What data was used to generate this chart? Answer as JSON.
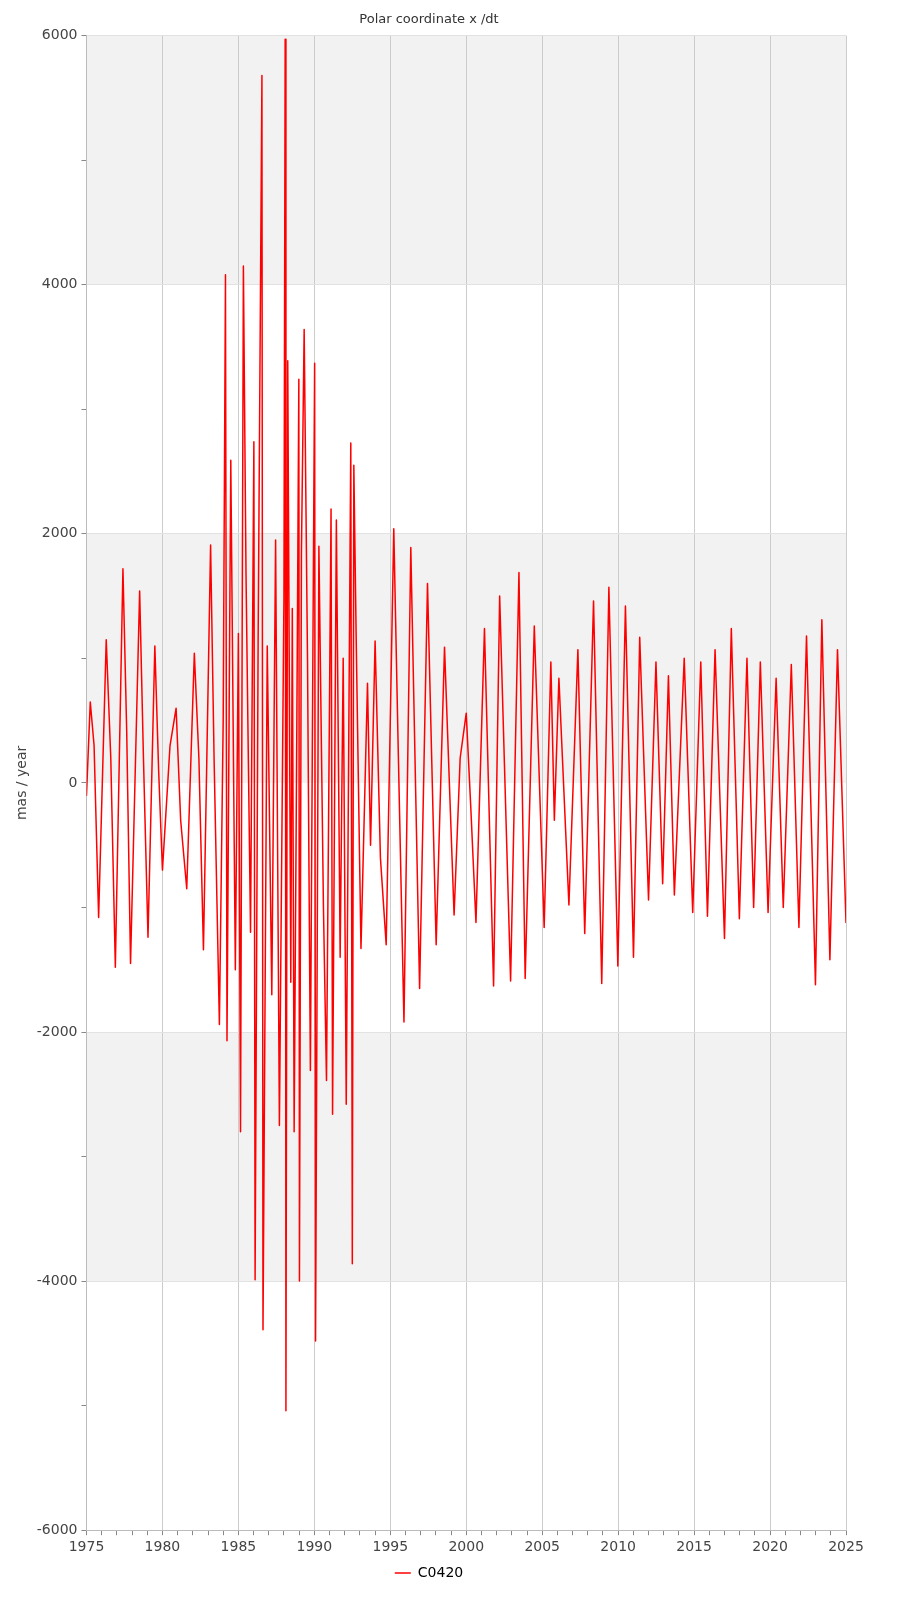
{
  "chart_data": {
    "type": "line",
    "title": "Polar coordinate x /dt",
    "ylabel": "mas / year",
    "xlim": [
      1975,
      2025
    ],
    "xticks": [
      1975,
      {
        "value": 1976,
        "label": null
      },
      {
        "value": 1977,
        "label": null
      },
      {
        "value": 1978,
        "label": null
      },
      {
        "value": 1979,
        "label": null
      },
      1980,
      {
        "value": 1981,
        "label": null
      },
      {
        "value": 1982,
        "label": null
      },
      {
        "value": 1983,
        "label": null
      },
      {
        "value": 1984,
        "label": null
      },
      1985,
      {
        "value": 1986,
        "label": null
      },
      {
        "value": 1987,
        "label": null
      },
      {
        "value": 1988,
        "label": null
      },
      {
        "value": 1989,
        "label": null
      },
      1990,
      {
        "value": 1991,
        "label": null
      },
      {
        "value": 1992,
        "label": null
      },
      {
        "value": 1993,
        "label": null
      },
      {
        "value": 1994,
        "label": null
      },
      1995,
      {
        "value": 1996,
        "label": null
      },
      {
        "value": 1997,
        "label": null
      },
      {
        "value": 1998,
        "label": null
      },
      {
        "value": 1999,
        "label": null
      },
      2000,
      {
        "value": 2001,
        "label": null
      },
      {
        "value": 2002,
        "label": null
      },
      {
        "value": 2003,
        "label": null
      },
      {
        "value": 2004,
        "label": null
      },
      2005,
      {
        "value": 2006,
        "label": null
      },
      {
        "value": 2007,
        "label": null
      },
      {
        "value": 2008,
        "label": null
      },
      {
        "value": 2009,
        "label": null
      },
      2010,
      {
        "value": 2011,
        "label": null
      },
      {
        "value": 2012,
        "label": null
      },
      {
        "value": 2013,
        "label": null
      },
      {
        "value": 2014,
        "label": null
      },
      2015,
      {
        "value": 2016,
        "label": null
      },
      {
        "value": 2017,
        "label": null
      },
      {
        "value": 2018,
        "label": null
      },
      {
        "value": 2019,
        "label": null
      },
      2020,
      {
        "value": 2021,
        "label": null
      },
      {
        "value": 2022,
        "label": null
      },
      {
        "value": 2023,
        "label": null
      },
      {
        "value": 2024,
        "label": null
      },
      2025
    ],
    "ylim": [
      -6000,
      6000
    ],
    "yticks": [
      -6000,
      {
        "value": -5000,
        "label": null
      },
      -4000,
      {
        "value": -3000,
        "label": null
      },
      -2000,
      {
        "value": -1000,
        "label": null
      },
      0,
      {
        "value": 1000,
        "label": null
      },
      2000,
      {
        "value": 3000,
        "label": null
      },
      4000,
      {
        "value": 5000,
        "label": null
      },
      6000
    ],
    "grid": true,
    "legend": "bottom",
    "marker": "none",
    "line_style": "solid",
    "bands": [
      {
        "axis": "y",
        "from": 4000,
        "to": 6000,
        "color": "#f2f2f2"
      },
      {
        "axis": "y",
        "from": 0,
        "to": 2000,
        "color": "#f2f2f2"
      },
      {
        "axis": "y",
        "from": -4000,
        "to": -2000,
        "color": "#f2f2f2"
      }
    ],
    "series": [
      {
        "name": "C0420",
        "color": "#ff0000",
        "x": [
          1975.0,
          1975.25,
          1975.5,
          1975.8,
          1976.3,
          1976.6,
          1976.9,
          1977.4,
          1977.65,
          1977.9,
          1978.5,
          1978.75,
          1979.05,
          1979.5,
          1979.75,
          1980.0,
          1980.5,
          1980.9,
          1981.2,
          1981.6,
          1982.1,
          1982.4,
          1982.7,
          1983.17,
          1983.4,
          1983.75,
          1984.0,
          1984.15,
          1984.25,
          1984.5,
          1984.8,
          1985.0,
          1985.14,
          1985.33,
          1985.5,
          1985.8,
          1986.02,
          1986.1,
          1986.3,
          1986.55,
          1986.62,
          1986.9,
          1987.2,
          1987.45,
          1987.7,
          1988.0,
          1988.08,
          1988.13,
          1988.25,
          1988.45,
          1988.55,
          1988.67,
          1988.85,
          1988.98,
          1989.02,
          1989.15,
          1989.33,
          1989.55,
          1989.74,
          1990.02,
          1990.08,
          1990.3,
          1990.6,
          1990.8,
          1991.1,
          1991.2,
          1991.45,
          1991.7,
          1991.9,
          1992.1,
          1992.4,
          1992.5,
          1992.6,
          1992.75,
          1993.07,
          1993.5,
          1993.7,
          1994.0,
          1994.35,
          1994.73,
          1995.23,
          1995.5,
          1995.9,
          1996.35,
          1996.93,
          1997.45,
          1998.02,
          1998.57,
          1999.2,
          1999.6,
          2000.0,
          2000.3,
          2000.64,
          2001.2,
          2001.8,
          2002.2,
          2002.92,
          2003.47,
          2003.88,
          2004.48,
          2005.13,
          2005.57,
          2005.8,
          2006.1,
          2006.76,
          2007.35,
          2007.8,
          2008.38,
          2008.92,
          2009.39,
          2009.98,
          2010.48,
          2011.01,
          2011.42,
          2012.0,
          2012.49,
          2012.93,
          2013.31,
          2013.7,
          2014.35,
          2014.91,
          2015.44,
          2015.88,
          2016.38,
          2017.0,
          2017.45,
          2017.98,
          2018.48,
          2018.92,
          2019.36,
          2019.87,
          2020.4,
          2020.87,
          2021.4,
          2021.9,
          2022.4,
          2022.99,
          2023.41,
          2023.94,
          2024.44,
          2025.0
        ],
        "values": [
          -100,
          650,
          300,
          -1080,
          1150,
          200,
          -1480,
          1720,
          400,
          -1450,
          1540,
          200,
          -1240,
          1100,
          100,
          -700,
          300,
          600,
          -300,
          -850,
          1040,
          200,
          -1340,
          1910,
          200,
          -1940,
          500,
          4080,
          -2070,
          2590,
          -1500,
          1200,
          -2800,
          4150,
          1700,
          -1200,
          2740,
          -3990,
          1150,
          5680,
          -4390,
          1100,
          -1700,
          1950,
          -2750,
          1500,
          5970,
          -5040,
          3390,
          -1600,
          1400,
          -2800,
          500,
          3240,
          -4000,
          1850,
          3640,
          1000,
          -2310,
          3370,
          -4480,
          1900,
          -1000,
          -2390,
          2200,
          -2660,
          2110,
          -1400,
          1000,
          -2580,
          2730,
          -3860,
          2550,
          1200,
          -1330,
          800,
          -500,
          1140,
          -600,
          -1300,
          2040,
          400,
          -1920,
          1890,
          -1650,
          1600,
          -1300,
          1090,
          -1060,
          200,
          560,
          -200,
          -1120,
          1240,
          -1630,
          1500,
          -1590,
          1690,
          -1570,
          1260,
          -1160,
          970,
          -300,
          840,
          -980,
          1070,
          -1210,
          1460,
          -1610,
          1570,
          -1470,
          1420,
          -1400,
          1170,
          -940,
          970,
          -810,
          860,
          -900,
          1000,
          -1040,
          970,
          -1070,
          1070,
          -1250,
          1240,
          -1090,
          1000,
          -1000,
          970,
          -1040,
          840,
          -1000,
          950,
          -1160,
          1180,
          -1620,
          1310,
          -1420,
          1070,
          -1120
        ]
      }
    ]
  }
}
